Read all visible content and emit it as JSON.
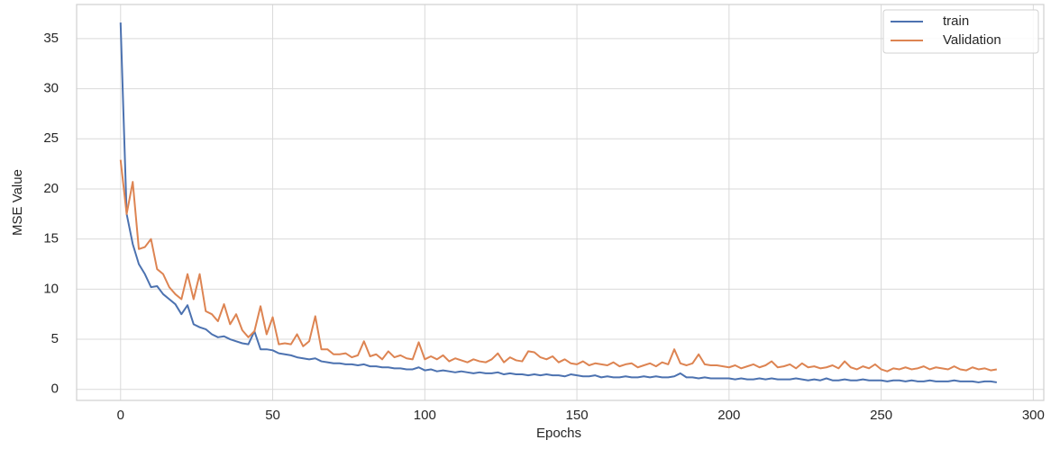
{
  "chart_data": {
    "type": "line",
    "xlabel": "Epochs",
    "ylabel": "MSE Value",
    "x": [
      0,
      2,
      4,
      6,
      8,
      10,
      12,
      14,
      16,
      18,
      20,
      22,
      24,
      26,
      28,
      30,
      32,
      34,
      36,
      38,
      40,
      42,
      44,
      46,
      48,
      50,
      52,
      54,
      56,
      58,
      60,
      62,
      64,
      66,
      68,
      70,
      72,
      74,
      76,
      78,
      80,
      82,
      84,
      86,
      88,
      90,
      92,
      94,
      96,
      98,
      100,
      102,
      104,
      106,
      108,
      110,
      112,
      114,
      116,
      118,
      120,
      122,
      124,
      126,
      128,
      130,
      132,
      134,
      136,
      138,
      140,
      142,
      144,
      146,
      148,
      150,
      152,
      154,
      156,
      158,
      160,
      162,
      164,
      166,
      168,
      170,
      172,
      174,
      176,
      178,
      180,
      182,
      184,
      186,
      188,
      190,
      192,
      194,
      196,
      198,
      200,
      202,
      204,
      206,
      208,
      210,
      212,
      214,
      216,
      218,
      220,
      222,
      224,
      226,
      228,
      230,
      232,
      234,
      236,
      238,
      240,
      242,
      244,
      246,
      248,
      250,
      252,
      254,
      256,
      258,
      260,
      262,
      264,
      266,
      268,
      270,
      272,
      274,
      276,
      278,
      280,
      282,
      284,
      286,
      288
    ],
    "series": [
      {
        "name": "train",
        "color": "#4c72b0",
        "values": [
          36.6,
          17.5,
          14.5,
          12.5,
          11.5,
          10.2,
          10.3,
          9.5,
          9.0,
          8.5,
          7.5,
          8.4,
          6.5,
          6.2,
          6.0,
          5.5,
          5.2,
          5.3,
          5.0,
          4.8,
          4.6,
          4.5,
          5.8,
          4.0,
          4.0,
          3.9,
          3.6,
          3.5,
          3.4,
          3.2,
          3.1,
          3.0,
          3.1,
          2.8,
          2.7,
          2.6,
          2.6,
          2.5,
          2.5,
          2.4,
          2.5,
          2.3,
          2.3,
          2.2,
          2.2,
          2.1,
          2.1,
          2.0,
          2.0,
          2.2,
          1.9,
          2.0,
          1.8,
          1.9,
          1.8,
          1.7,
          1.8,
          1.7,
          1.6,
          1.7,
          1.6,
          1.6,
          1.7,
          1.5,
          1.6,
          1.5,
          1.5,
          1.4,
          1.5,
          1.4,
          1.5,
          1.4,
          1.4,
          1.3,
          1.5,
          1.4,
          1.3,
          1.3,
          1.4,
          1.2,
          1.3,
          1.2,
          1.2,
          1.3,
          1.2,
          1.2,
          1.3,
          1.2,
          1.3,
          1.2,
          1.2,
          1.3,
          1.6,
          1.2,
          1.2,
          1.1,
          1.2,
          1.1,
          1.1,
          1.1,
          1.1,
          1.0,
          1.1,
          1.0,
          1.0,
          1.1,
          1.0,
          1.1,
          1.0,
          1.0,
          1.0,
          1.1,
          1.0,
          0.9,
          1.0,
          0.9,
          1.1,
          0.9,
          0.9,
          1.0,
          0.9,
          0.9,
          1.0,
          0.9,
          0.9,
          0.9,
          0.8,
          0.9,
          0.9,
          0.8,
          0.9,
          0.8,
          0.8,
          0.9,
          0.8,
          0.8,
          0.8,
          0.9,
          0.8,
          0.8,
          0.8,
          0.7,
          0.8,
          0.8,
          0.7
        ]
      },
      {
        "name": "Validation",
        "color": "#dd8452",
        "values": [
          22.9,
          17.5,
          20.7,
          14.0,
          14.2,
          15.0,
          12.0,
          11.5,
          10.2,
          9.5,
          9.0,
          11.5,
          9.0,
          11.5,
          7.8,
          7.5,
          6.8,
          8.5,
          6.5,
          7.5,
          5.9,
          5.2,
          5.8,
          8.3,
          5.5,
          7.2,
          4.5,
          4.6,
          4.5,
          5.5,
          4.3,
          4.8,
          7.3,
          4.0,
          4.0,
          3.5,
          3.5,
          3.6,
          3.2,
          3.4,
          4.8,
          3.3,
          3.5,
          3.0,
          3.8,
          3.2,
          3.4,
          3.1,
          3.0,
          4.7,
          3.0,
          3.3,
          3.0,
          3.4,
          2.8,
          3.1,
          2.9,
          2.7,
          3.0,
          2.8,
          2.7,
          3.0,
          3.6,
          2.7,
          3.2,
          2.9,
          2.8,
          3.8,
          3.7,
          3.2,
          3.0,
          3.3,
          2.7,
          3.0,
          2.6,
          2.5,
          2.8,
          2.4,
          2.6,
          2.5,
          2.4,
          2.7,
          2.3,
          2.5,
          2.6,
          2.2,
          2.4,
          2.6,
          2.3,
          2.7,
          2.5,
          4.0,
          2.6,
          2.4,
          2.6,
          3.5,
          2.5,
          2.4,
          2.4,
          2.3,
          2.2,
          2.4,
          2.1,
          2.3,
          2.5,
          2.2,
          2.4,
          2.8,
          2.2,
          2.3,
          2.5,
          2.1,
          2.6,
          2.2,
          2.3,
          2.1,
          2.2,
          2.4,
          2.1,
          2.8,
          2.2,
          2.0,
          2.3,
          2.1,
          2.5,
          2.0,
          1.8,
          2.1,
          2.0,
          2.2,
          2.0,
          2.1,
          2.3,
          2.0,
          2.2,
          2.1,
          2.0,
          2.3,
          2.0,
          1.9,
          2.2,
          2.0,
          2.1,
          1.9,
          2.0
        ]
      }
    ],
    "xlim": [
      -14.45,
      303.45
    ],
    "ylim": [
      -1.1,
      38.4
    ],
    "xticks": [
      0,
      50,
      100,
      150,
      200,
      250,
      300
    ],
    "yticks": [
      0,
      5,
      10,
      15,
      20,
      25,
      30,
      35
    ],
    "grid": true,
    "legend": "upper right"
  }
}
